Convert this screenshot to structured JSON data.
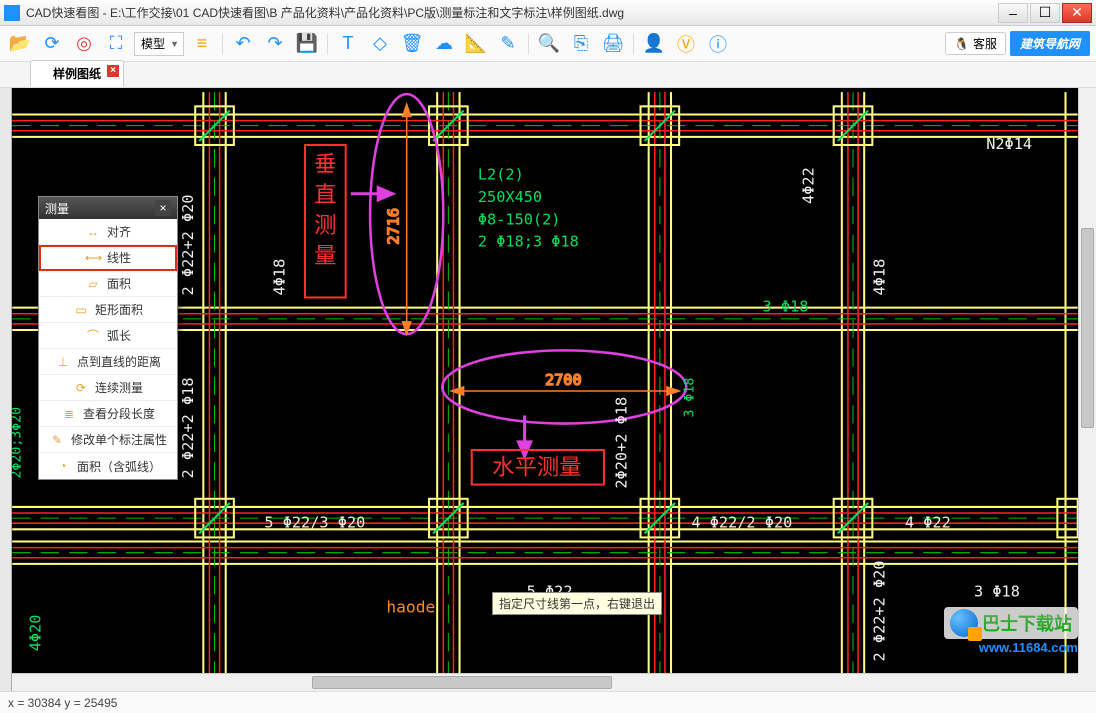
{
  "window": {
    "title": "CAD快速看图 - E:\\工作交接\\01 CAD快速看图\\B 产品化资料\\产品化资料\\PC版\\测量标注和文字标注\\样例图纸.dwg",
    "minimize": "–",
    "maximize": "☐",
    "close": "✕"
  },
  "toolbar": {
    "model_label": "模型",
    "kefu_label": "客服",
    "nav_label": "建筑导航网"
  },
  "tabs": {
    "active": "样例图纸"
  },
  "measure_panel": {
    "title": "测量",
    "items": [
      {
        "label": "对齐",
        "selected": false
      },
      {
        "label": "线性",
        "selected": true
      },
      {
        "label": "面积",
        "selected": false
      },
      {
        "label": "矩形面积",
        "selected": false
      },
      {
        "label": "弧长",
        "selected": false
      },
      {
        "label": "点到直线的距离",
        "selected": false
      },
      {
        "label": "连续测量",
        "selected": false
      },
      {
        "label": "查看分段长度",
        "selected": false
      },
      {
        "label": "修改单个标注属性",
        "selected": false
      },
      {
        "label": "面积（含弧线）",
        "selected": false
      }
    ]
  },
  "annotations": {
    "vertical_box": "垂直测量",
    "vertical_dim": "2716",
    "horizontal_box": "水平测量",
    "horizontal_dim": "2700",
    "hint": "指定尺寸线第一点，右键退出",
    "annotation_color": "#ff3030",
    "dim_color": "#ff7f27",
    "ellipse_color": "#e040e0",
    "arrow_color": "#e040e0"
  },
  "cad_colors": {
    "bg": "#000000",
    "wall_outer": "#ffff80",
    "wall_dash": "#00c000",
    "accent_red": "#ff2020",
    "text_white": "#f0f0f0",
    "text_green": "#00e060",
    "text_orange": "#ff8c1a"
  },
  "cad_text": {
    "beam_spec_1": "L2(2)",
    "beam_spec_2": "250X450",
    "beam_spec_3": "Φ8-150(2)",
    "beam_spec_4": "2 Φ18;3 Φ18",
    "n2": "N2Φ14",
    "r1": "4Φ22",
    "r2": "4Φ18",
    "r3": "3 Φ18",
    "l1": "2 Φ22+2 Φ20",
    "l2": "4Φ18",
    "l3": "2 Φ22+2 Φ18",
    "l4": "Φ8-150(2)",
    "l5": "2Φ20;3Φ20",
    "b1": "5 Φ22/3 Φ20",
    "b2": "2Φ20+2 Φ18",
    "b3": "3 Φ18",
    "b4": "4 Φ22/2 Φ20",
    "b5": "4 Φ22",
    "b6": "2 Φ22+2 Φ20",
    "b7": "5 Φ22",
    "b8": "3 Φ18",
    "b9": "4Φ20",
    "haode": "haode"
  },
  "status": {
    "coords": "x = 30384   y = 25495"
  },
  "watermark": {
    "name": "巴士下载站",
    "url": "www.11684.com"
  }
}
